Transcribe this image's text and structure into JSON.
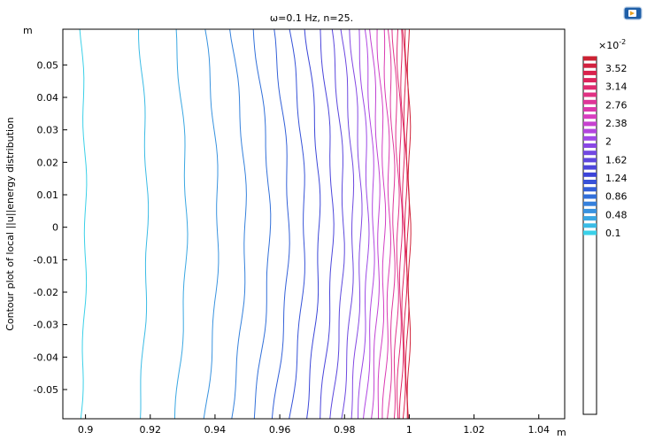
{
  "plot": {
    "title": "ω=0.1 Hz, n=25.",
    "ylabel": "Contour plot of local ||u||energy distribution",
    "x_unit": "m",
    "y_unit": "m"
  },
  "toolbar": {
    "icon": "comsol-app-icon"
  },
  "colorbar": {
    "multiplier": "×10",
    "exponent": "-2",
    "tick_labels": [
      "3.52",
      "3.14",
      "2.76",
      "2.38",
      "2",
      "1.62",
      "1.24",
      "0.86",
      "0.48",
      "0.1"
    ],
    "colors": [
      "#cc2233",
      "#dd2255",
      "#e0338a",
      "#d83dc0",
      "#a848e8",
      "#6a48e0",
      "#3c44d8",
      "#3068d8",
      "#3a98e0",
      "#3ad0e8"
    ]
  },
  "chart_data": {
    "type": "contour",
    "title": "ω=0.1 Hz, n=25.",
    "ylabel": "Contour plot of local ||u||energy distribution",
    "xlim": [
      0.893,
      1.048
    ],
    "ylim": [
      -0.059,
      0.061
    ],
    "x_ticks": [
      "0.9",
      "0.92",
      "0.94",
      "0.96",
      "0.98",
      "1",
      "1.02",
      "1.04"
    ],
    "y_ticks": [
      "0.05",
      "0.04",
      "0.03",
      "0.02",
      "0.01",
      "0",
      "-0.01",
      "-0.02",
      "-0.03",
      "-0.04",
      "-0.05"
    ],
    "x_tick_values": [
      0.9,
      0.92,
      0.94,
      0.96,
      0.98,
      1.0,
      1.02,
      1.04
    ],
    "y_tick_values": [
      0.05,
      0.04,
      0.03,
      0.02,
      0.01,
      0,
      -0.01,
      -0.02,
      -0.03,
      -0.04,
      -0.05
    ],
    "contour_levels": [
      0.001,
      0.0024,
      0.0038,
      0.0052,
      0.0066,
      0.008,
      0.0094,
      0.0108,
      0.0122,
      0.0136,
      0.015,
      0.0164,
      0.0178,
      0.0192,
      0.0206,
      0.022,
      0.0234,
      0.0248,
      0.0262,
      0.0276,
      0.029,
      0.0304,
      0.0318,
      0.0332,
      0.0346
    ],
    "contour_x_positions": [
      0.8993,
      0.9178,
      0.9294,
      0.9389,
      0.9472,
      0.9543,
      0.9603,
      0.9654,
      0.9701,
      0.9743,
      0.9778,
      0.9809,
      0.9834,
      0.9857,
      0.9876,
      0.9894,
      0.9912,
      0.9929,
      0.9944,
      0.9958,
      0.9969,
      0.9978,
      0.9986,
      0.9993,
      0.9999
    ],
    "contour_bulge": [
      0.0015,
      0.0025,
      0.0035,
      0.004,
      0.0045,
      0.005,
      0.0048,
      0.0045,
      0.0042,
      0.004,
      0.0038,
      0.0035,
      0.0033,
      0.003,
      0.0028,
      0.0025,
      0.0022,
      0.002,
      0.0018,
      0.0015,
      0.0012,
      0.001,
      0.0008,
      0.0006,
      0.0004
    ],
    "clim": [
      0.001,
      0.0352
    ]
  }
}
